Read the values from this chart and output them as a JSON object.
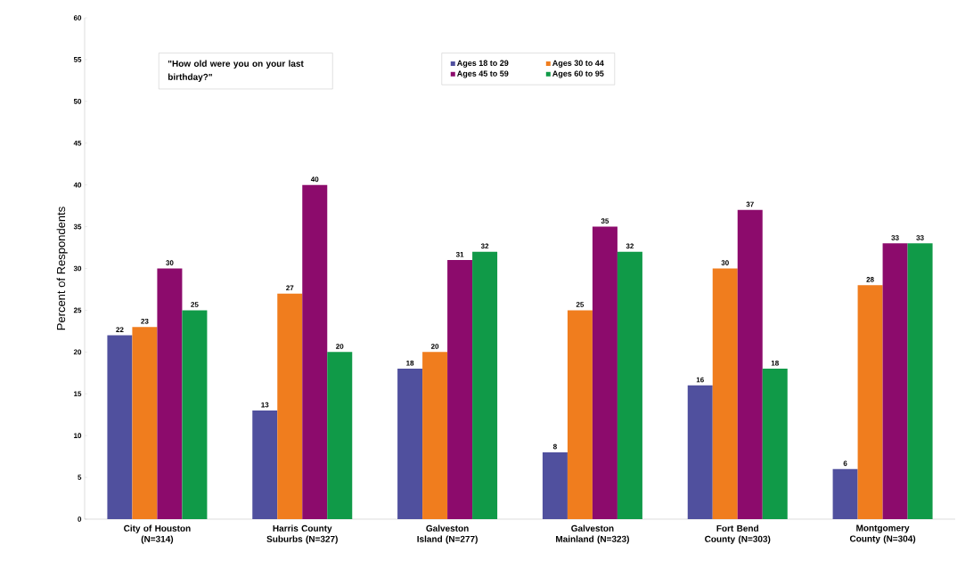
{
  "chart_data": {
    "type": "bar",
    "ylabel": "Percent of Respondents",
    "categories": [
      "City of Houston (N=314)",
      "Harris County Suburbs (N=327)",
      "Galveston Island (N=277)",
      "Galveston Mainland (N=323)",
      "Fort Bend County (N=303)",
      "Montgomery County (N=304)"
    ],
    "series": [
      {
        "name": "Ages 18 to 29",
        "color": "#50509e",
        "values": [
          22,
          13,
          18,
          8,
          16,
          6
        ]
      },
      {
        "name": "Ages 30 to 44",
        "color": "#f07d1e",
        "values": [
          23,
          27,
          20,
          25,
          30,
          28
        ]
      },
      {
        "name": "Ages 45 to 59",
        "color": "#8c0b6c",
        "values": [
          30,
          40,
          31,
          35,
          37,
          33
        ]
      },
      {
        "name": "Ages 60 to 95",
        "color": "#109a48",
        "values": [
          25,
          20,
          32,
          32,
          18,
          33
        ]
      }
    ],
    "ylim": [
      0,
      60
    ],
    "yticks": [
      0,
      5,
      10,
      15,
      20,
      25,
      30,
      35,
      40,
      45,
      50,
      55,
      60
    ],
    "annotations": [
      "\"How old were you on your last birthday?\""
    ],
    "data_labels": true,
    "legend": "top",
    "grid": false
  }
}
